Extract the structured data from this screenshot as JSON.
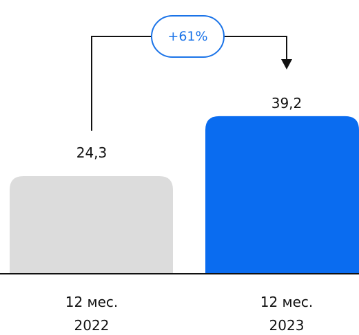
{
  "chart_data": {
    "type": "bar",
    "categories": [
      "12 мес.\n2022",
      "12 мес.\n2023"
    ],
    "category_lines": [
      [
        "12 мес.",
        "2022"
      ],
      [
        "12 мес.",
        "2023"
      ]
    ],
    "values": [
      24.3,
      39.2
    ],
    "value_labels": [
      "24,3",
      "39,2"
    ],
    "colors": [
      "#dcdcdc",
      "#0a6cf0"
    ],
    "ylim": [
      0,
      45
    ],
    "annotation": {
      "text": "+61%",
      "from": 0,
      "to": 1,
      "color": "#1a73e8"
    },
    "axis_color": "#111111",
    "grid": false
  }
}
